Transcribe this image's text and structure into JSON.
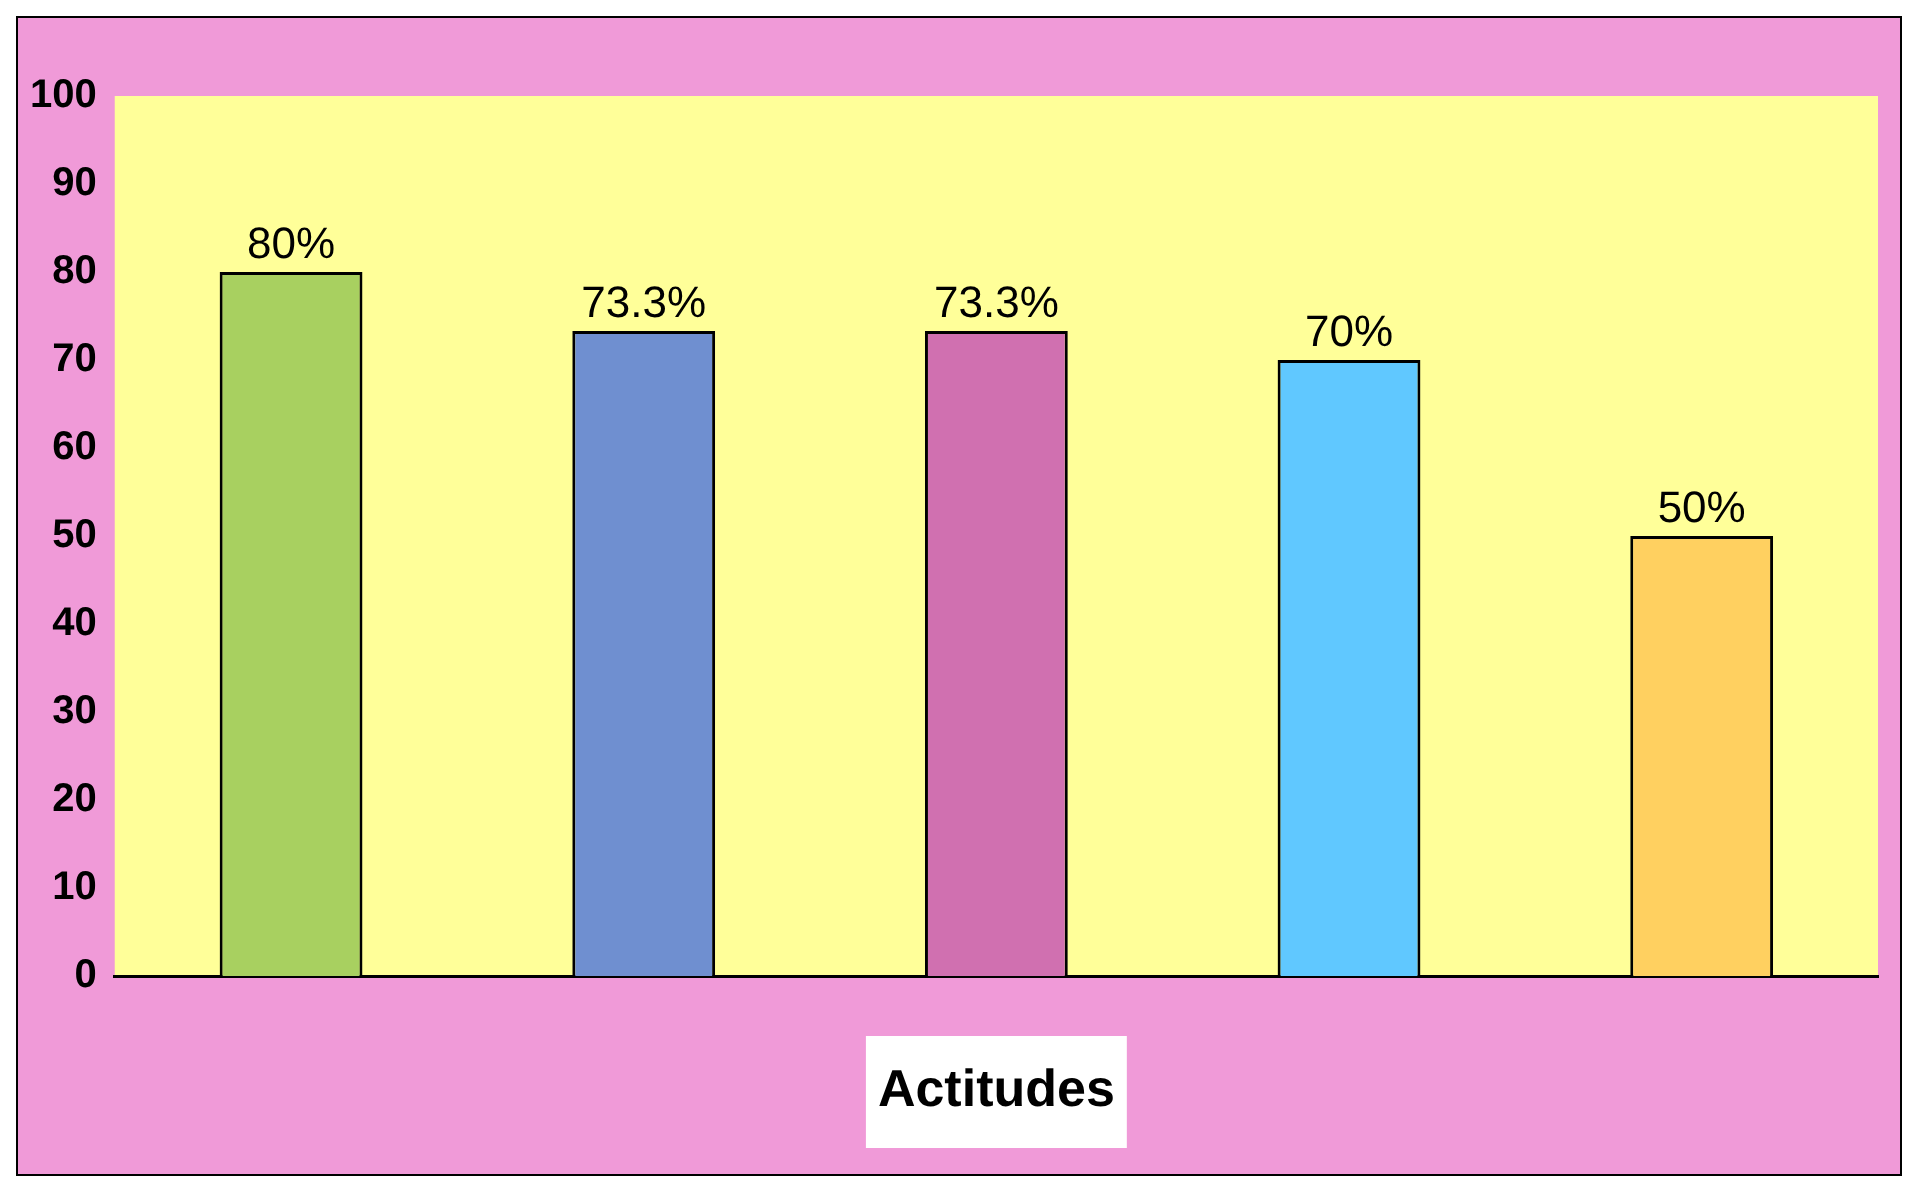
{
  "chart_data": {
    "type": "bar",
    "xlabel": "Actitudes",
    "categories": [
      null,
      null,
      null,
      null,
      null
    ],
    "values": [
      80,
      73.3,
      73.3,
      70,
      50
    ],
    "colors": [
      "#a8d060",
      "#6f8fd0",
      "#d070b0",
      "#60c8ff",
      "#ffd060"
    ],
    "value_labels": [
      "80%",
      "73.3%",
      "73.3%",
      "70%",
      "50%"
    ],
    "ylim": [
      0,
      100
    ],
    "yticks": [
      0,
      10,
      20,
      30,
      40,
      50,
      60,
      70,
      80,
      90,
      100
    ]
  }
}
